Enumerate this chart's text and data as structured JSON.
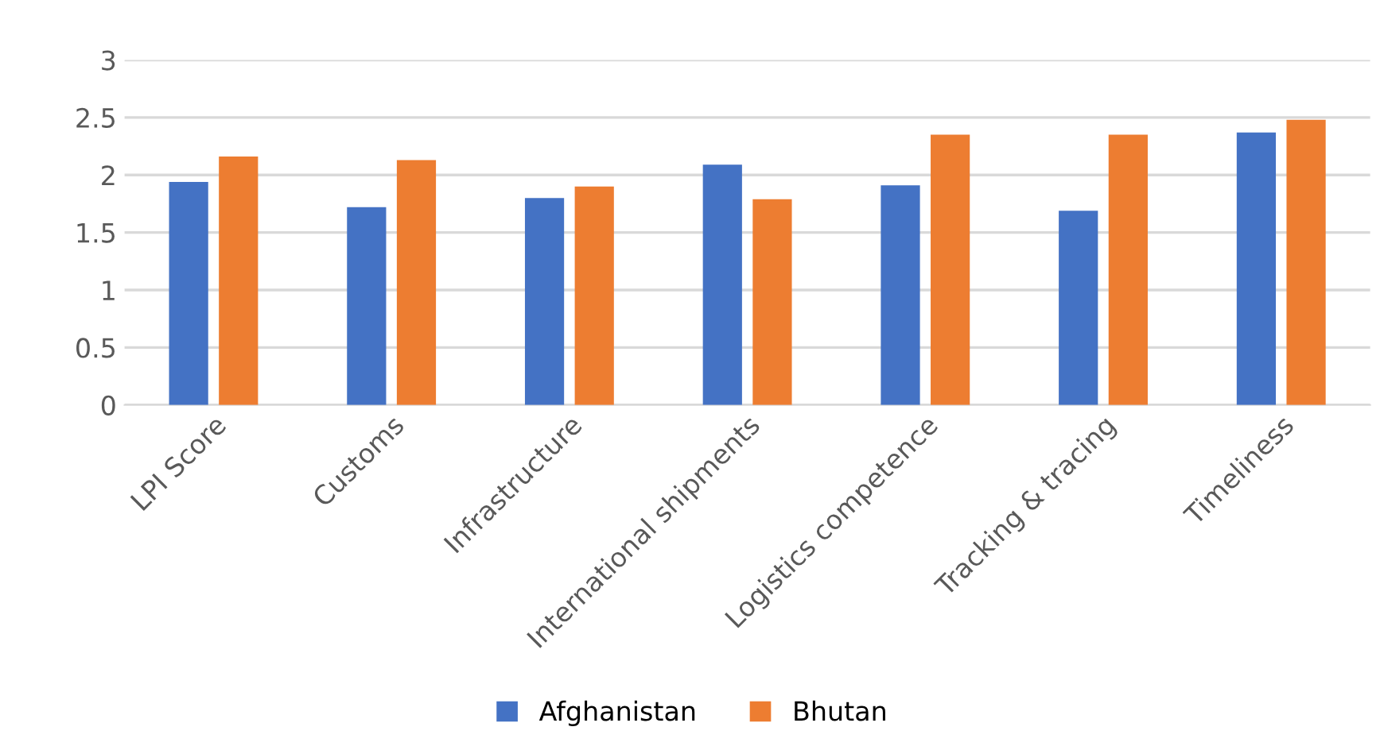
{
  "chart_data": {
    "type": "bar",
    "categories": [
      "LPI Score",
      "Customs",
      "Infrastructure",
      "International shipments",
      "Logistics competence",
      "Tracking & tracing",
      "Timeliness"
    ],
    "series": [
      {
        "name": "Afghanistan",
        "color": "#4472c4",
        "values": [
          1.94,
          1.72,
          1.8,
          2.09,
          1.91,
          1.69,
          2.37
        ]
      },
      {
        "name": "Bhutan",
        "color": "#ed7d31",
        "values": [
          2.16,
          2.13,
          1.9,
          1.79,
          2.35,
          2.35,
          2.48
        ]
      }
    ],
    "ylim": [
      0,
      3
    ],
    "yticks": [
      0,
      0.5,
      1,
      1.5,
      2,
      2.5,
      3
    ],
    "grid": "y",
    "legend": "bottom"
  }
}
